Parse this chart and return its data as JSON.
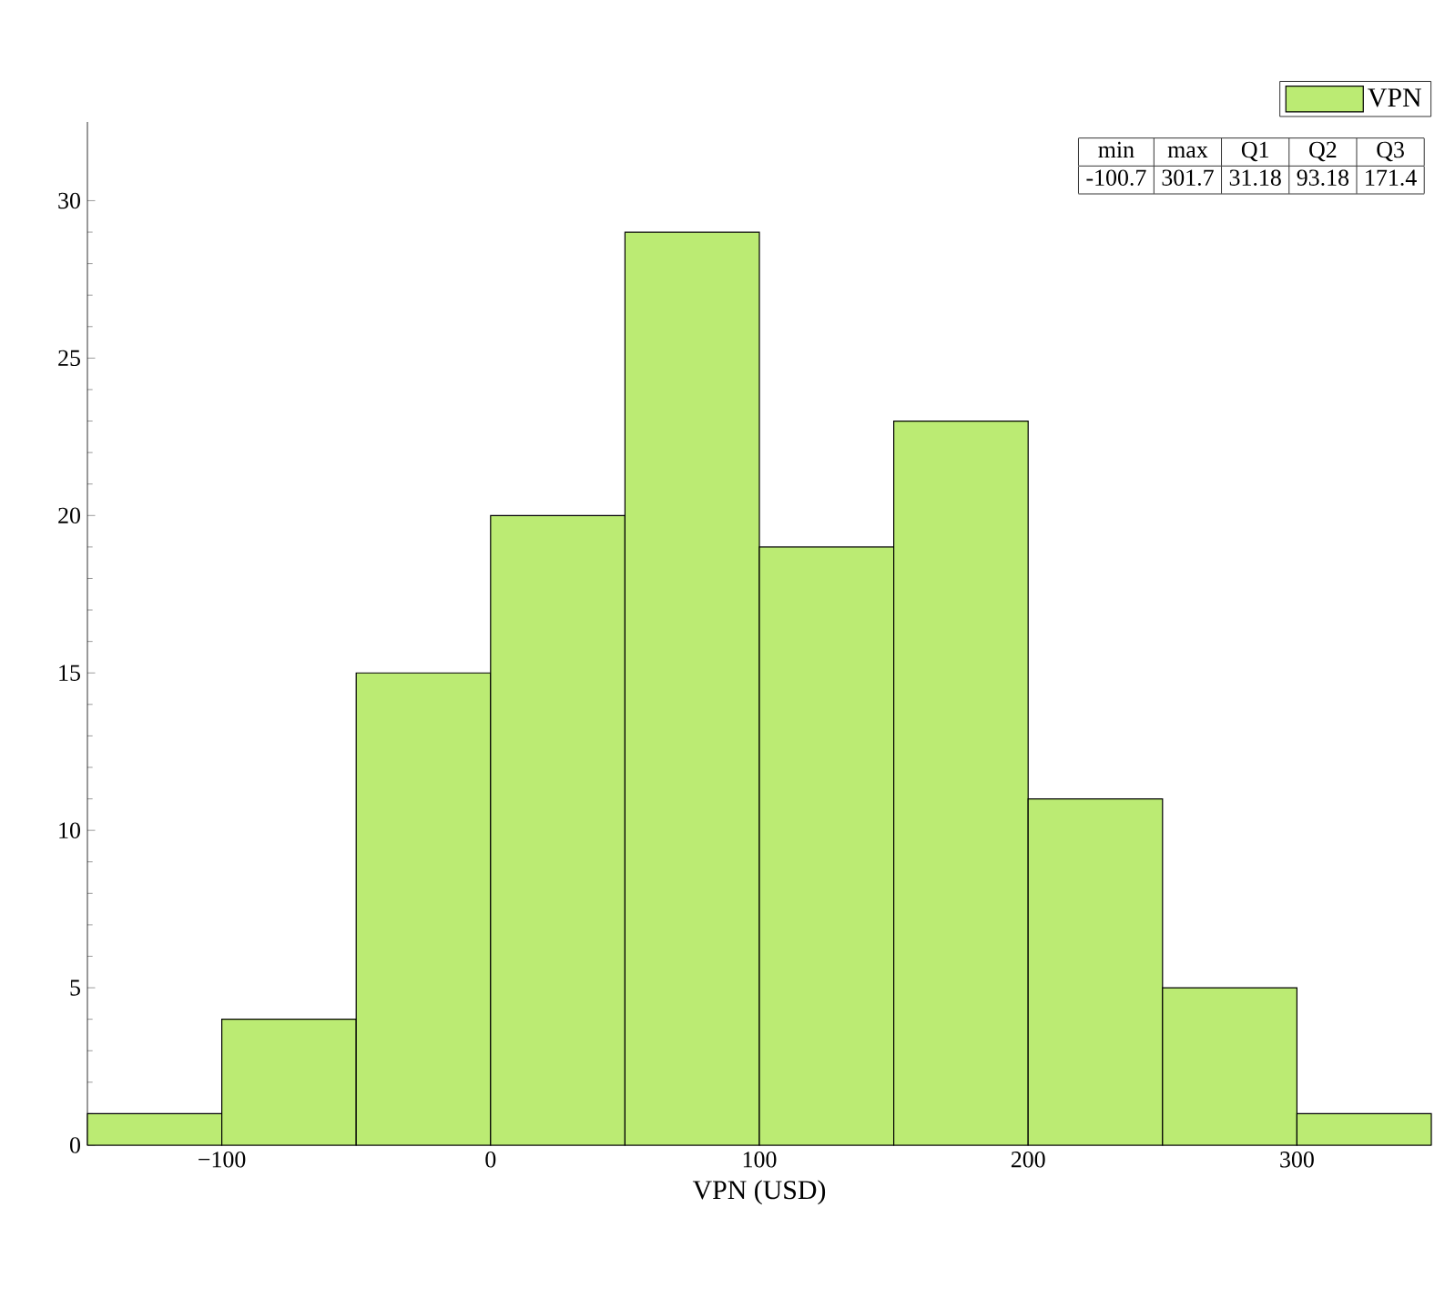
{
  "chart_data": {
    "type": "histogram",
    "xlabel": "VPN (USD)",
    "bins": [
      -150,
      -100,
      -50,
      0,
      50,
      100,
      150,
      200,
      250,
      300,
      350
    ],
    "series": [
      {
        "name": "VPN",
        "color": "#bbeb73",
        "values": [
          1,
          4,
          15,
          20,
          29,
          19,
          23,
          11,
          5,
          1
        ]
      }
    ],
    "xlim": [
      -150,
      350
    ],
    "ylim": [
      0,
      32.5
    ],
    "xticks": [
      {
        "value": -100,
        "label": "−100"
      },
      0,
      100,
      200,
      300
    ],
    "yticks": [
      0,
      5,
      10,
      15,
      20,
      25,
      30
    ],
    "annotations": [
      "min",
      "max",
      "Q1",
      "Q2",
      "Q3",
      "-100.7",
      "301.7",
      "31.18",
      "93.18",
      "171.4"
    ],
    "legend": "top right",
    "grid": false
  }
}
